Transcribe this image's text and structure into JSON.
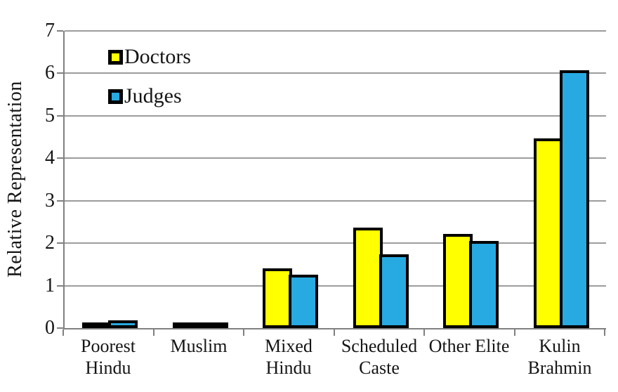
{
  "chart_data": {
    "type": "bar",
    "title": "",
    "xlabel": "",
    "ylabel": "Relative Representation",
    "ylim": [
      0,
      7
    ],
    "yticks": [
      0,
      1,
      2,
      3,
      4,
      5,
      6,
      7
    ],
    "grid": true,
    "legend_position": "inside-top-left",
    "categories": [
      "Poorest Hindu",
      "Muslim",
      "Mixed Hindu",
      "Scheduled Caste",
      "Other Elite",
      "Kulin Brahmin"
    ],
    "category_label_lines": [
      [
        "Poorest",
        "Hindu"
      ],
      [
        "Muslim"
      ],
      [
        "Mixed",
        "Hindu"
      ],
      [
        "Scheduled",
        "Caste"
      ],
      [
        "Other Elite"
      ],
      [
        "Kulin",
        "Brahmin"
      ]
    ],
    "series": [
      {
        "name": "Doctors",
        "color": "#FFFF00",
        "values": [
          0.08,
          0.12,
          1.4,
          2.37,
          2.21,
          4.46
        ]
      },
      {
        "name": "Judges",
        "color": "#27A9E1",
        "values": [
          0.19,
          0.14,
          1.26,
          1.74,
          2.06,
          6.08
        ]
      }
    ],
    "colors": {
      "bar_border": "#000000",
      "gridline": "#9c9c9c",
      "axis": "#808080",
      "background": "#FFFFFF",
      "text": "#151515"
    }
  }
}
